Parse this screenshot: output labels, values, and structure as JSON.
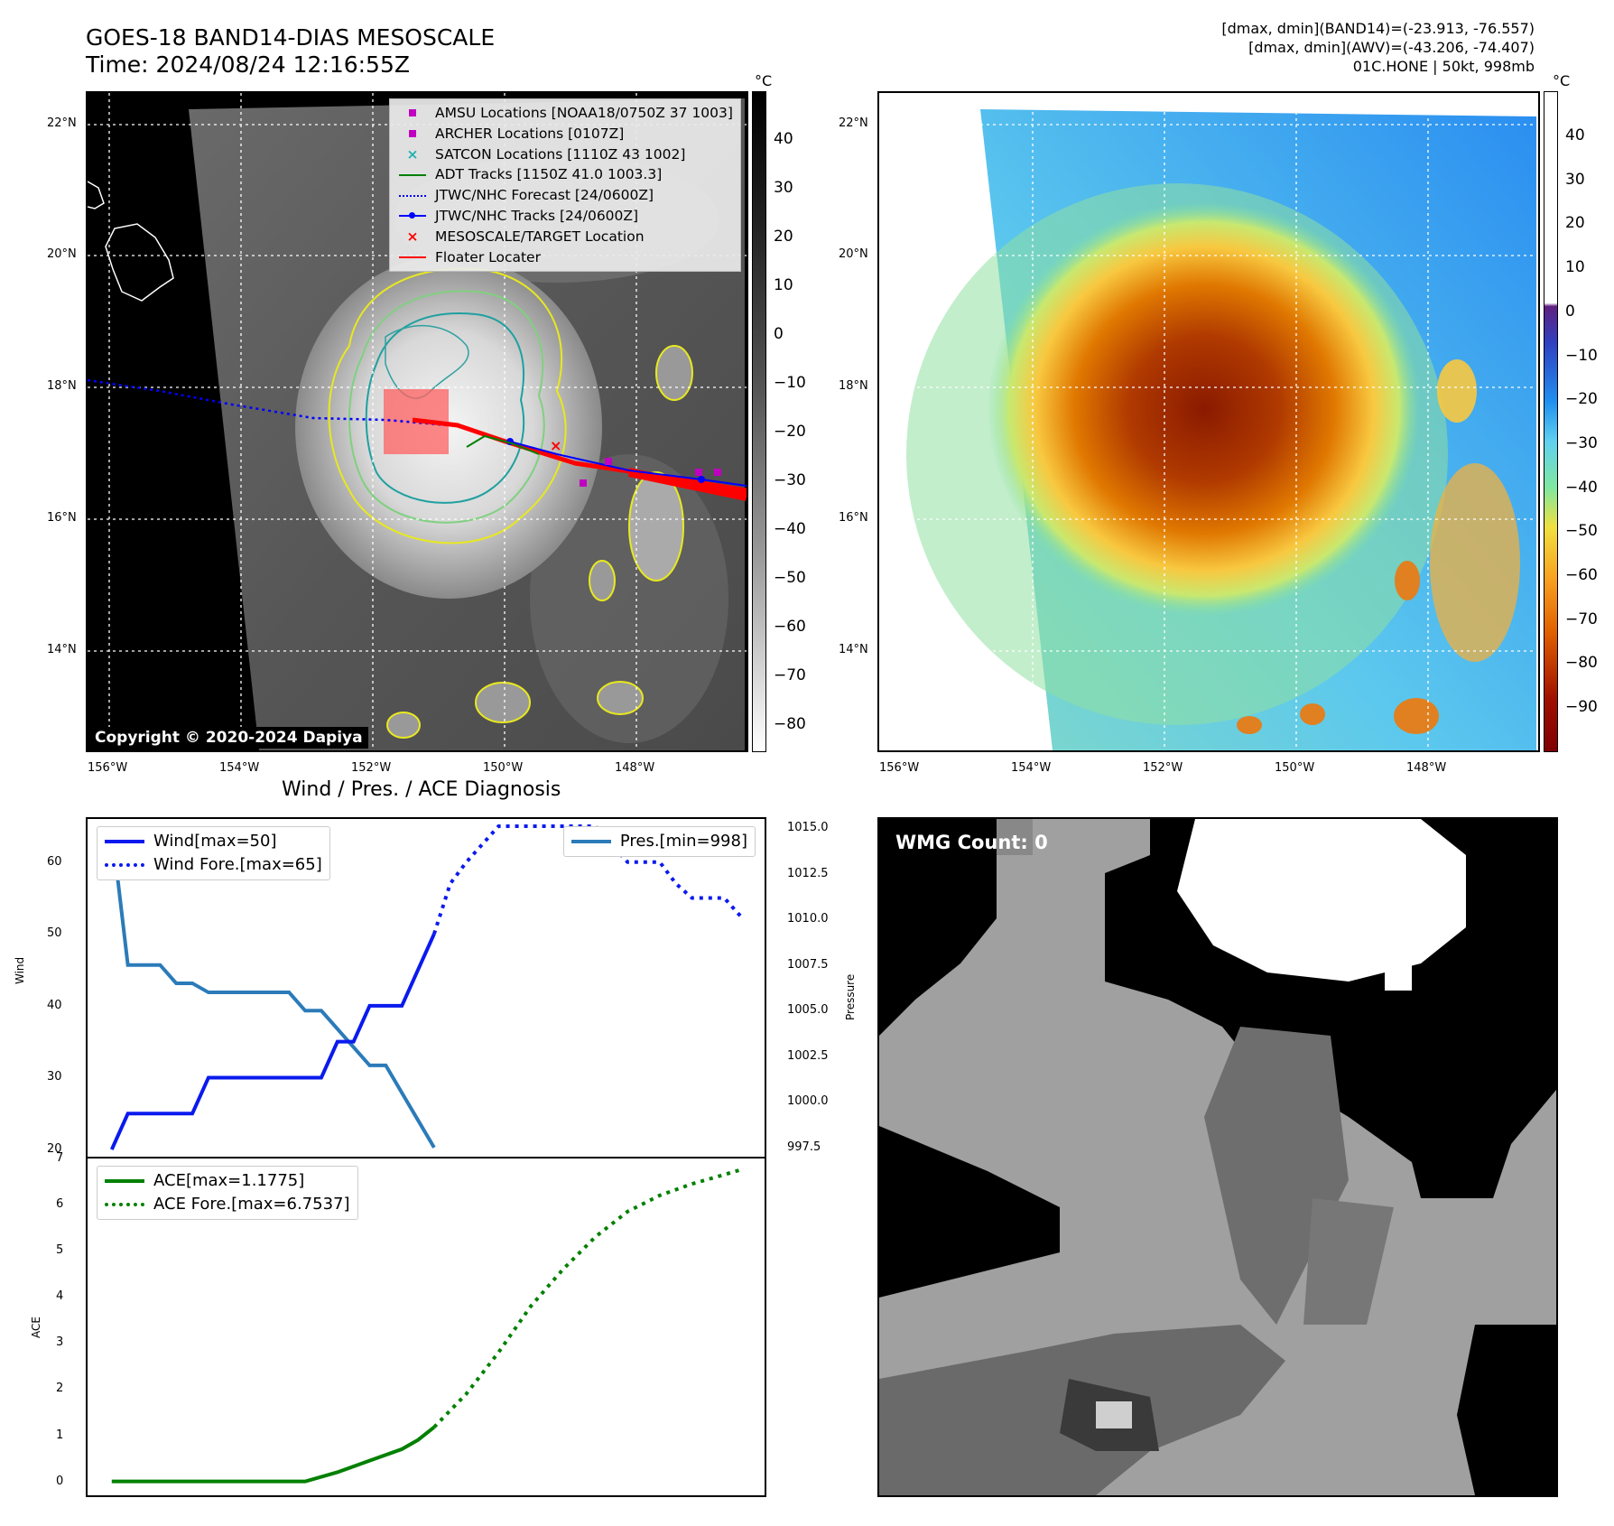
{
  "header": {
    "title_line1": "GOES-18 BAND14-DIAS MESOSCALE",
    "title_line2": "Time: 2024/08/24 12:16:55Z",
    "info_line1": "[dmax, dmin](BAND14)=(-23.913, -76.557)",
    "info_line2": "[dmax, dmin](AWV)=(-43.206, -74.407)",
    "info_line3": "01C.HONE | 50kt, 998mb"
  },
  "map": {
    "lat_labels": [
      "22°N",
      "20°N",
      "18°N",
      "16°N",
      "14°N"
    ],
    "lon_labels": [
      "156°W",
      "154°W",
      "152°W",
      "150°W",
      "148°W"
    ],
    "copyright": "Copyright © 2020-2024 Dapiya",
    "legend": [
      {
        "label": "AMSU Locations [NOAA18/0750Z 37 1003]",
        "symbol": "square",
        "color": "#c000c0"
      },
      {
        "label": "ARCHER Locations [0107Z]",
        "symbol": "square",
        "color": "#c000c0"
      },
      {
        "label": "SATCON Locations [1110Z 43 1002]",
        "symbol": "x",
        "color": "#20b0b0"
      },
      {
        "label": "ADT Tracks [1150Z 41.0 1003.3]",
        "symbol": "line",
        "color": "#008000"
      },
      {
        "label": "JTWC/NHC Forecast [24/0600Z]",
        "symbol": "dotted",
        "color": "#0000ff"
      },
      {
        "label": "JTWC/NHC Tracks [24/0600Z]",
        "symbol": "line-dot",
        "color": "#0000ff"
      },
      {
        "label": "MESOSCALE/TARGET Location",
        "symbol": "x",
        "color": "#ff0000"
      },
      {
        "label": "Floater Locater",
        "symbol": "line",
        "color": "#ff0000"
      }
    ]
  },
  "colorbar_gray": {
    "unit": "°C",
    "ticks": [
      "40",
      "30",
      "20",
      "10",
      "0",
      "−10",
      "−20",
      "−30",
      "−40",
      "−50",
      "−60",
      "−70",
      "−80"
    ]
  },
  "colorbar_color": {
    "unit": "°C",
    "ticks": [
      "40",
      "30",
      "20",
      "10",
      "0",
      "−10",
      "−20",
      "−30",
      "−40",
      "−50",
      "−60",
      "−70",
      "−80",
      "−90"
    ]
  },
  "wind_chart": {
    "title": "Wind / Pres. / ACE Diagnosis",
    "ylabel_left": "Wind",
    "ylabel_right": "Pressure",
    "wind_ticks": [
      "60",
      "50",
      "40",
      "30",
      "20"
    ],
    "pres_ticks": [
      "1015.0",
      "1012.5",
      "1010.0",
      "1007.5",
      "1005.0",
      "1002.5",
      "1000.0",
      "997.5"
    ],
    "legend_wind": "Wind[max=50]",
    "legend_wind_fore": "Wind Fore.[max=65]",
    "legend_pres": "Pres.[min=998]"
  },
  "ace_chart": {
    "ylabel": "ACE",
    "ticks": [
      "7",
      "6",
      "5",
      "4",
      "3",
      "2",
      "1",
      "0"
    ],
    "legend_ace": "ACE[max=1.1775]",
    "legend_ace_fore": "ACE Fore.[max=6.7537]"
  },
  "wmg": {
    "label": "WMG Count: 0"
  },
  "chart_data": [
    {
      "type": "line",
      "title": "Wind / Pres. / ACE Diagnosis",
      "ylabel": "Wind",
      "ylim": [
        19,
        66
      ],
      "series": [
        {
          "name": "Wind[max=50]",
          "x": [
            0,
            1,
            2,
            3,
            4,
            5,
            6,
            7,
            8,
            9,
            10,
            11,
            12,
            13,
            14,
            15,
            16,
            17,
            18,
            19,
            20
          ],
          "values": [
            20,
            25,
            25,
            25,
            25,
            25,
            30,
            30,
            30,
            30,
            30,
            30,
            30,
            30,
            35,
            35,
            40,
            40,
            40,
            45,
            50
          ]
        },
        {
          "name": "Wind Fore.[max=65]",
          "x": [
            20,
            21,
            22,
            23,
            24,
            25,
            26,
            27,
            28,
            29,
            30,
            31,
            32,
            33,
            34,
            35,
            36,
            37,
            38,
            39
          ],
          "values": [
            50,
            57,
            60,
            62.5,
            65,
            65,
            65,
            65,
            65,
            65,
            65,
            62.5,
            60,
            60,
            60,
            57,
            55,
            55,
            55,
            52.5
          ]
        }
      ]
    },
    {
      "type": "line",
      "ylabel": "Pressure",
      "ylim": [
        997,
        1015.5
      ],
      "series": [
        {
          "name": "Pres.[min=998]",
          "x": [
            0,
            1,
            2,
            3,
            4,
            5,
            6,
            7,
            8,
            9,
            10,
            11,
            12,
            13,
            14,
            15,
            16,
            17,
            18,
            19,
            20
          ],
          "values": [
            1015,
            1007.5,
            1007.5,
            1007.5,
            1006.5,
            1006.5,
            1006,
            1006,
            1006,
            1006,
            1006,
            1006,
            1005,
            1005,
            1004,
            1003,
            1002,
            1002,
            1000.5,
            999,
            997.5
          ]
        }
      ]
    },
    {
      "type": "line",
      "ylabel": "ACE",
      "ylim": [
        -0.3,
        7
      ],
      "series": [
        {
          "name": "ACE[max=1.1775]",
          "x": [
            0,
            2,
            4,
            6,
            8,
            10,
            12,
            14,
            16,
            18,
            19,
            20
          ],
          "values": [
            0,
            0,
            0,
            0,
            0,
            0,
            0,
            0.2,
            0.45,
            0.7,
            0.9,
            1.1775
          ]
        },
        {
          "name": "ACE Fore.[max=6.7537]",
          "x": [
            20,
            22,
            24,
            26,
            28,
            30,
            32,
            34,
            36,
            38,
            39
          ],
          "values": [
            1.1775,
            1.9,
            2.8,
            3.8,
            4.6,
            5.3,
            5.85,
            6.2,
            6.45,
            6.65,
            6.7537
          ]
        }
      ]
    }
  ]
}
